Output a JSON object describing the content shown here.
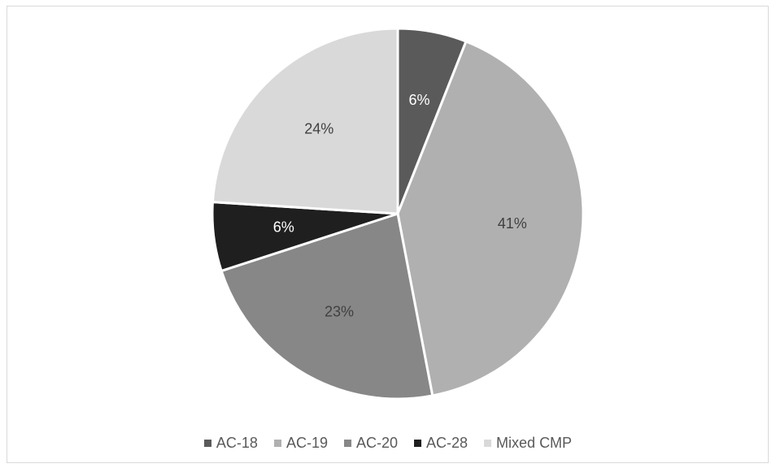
{
  "chart_data": {
    "type": "pie",
    "title": "",
    "legend_position": "bottom",
    "slices": [
      {
        "name": "AC-18",
        "value": 6,
        "label": "6%",
        "color": "#5a5a5a",
        "label_color": "#ffffff"
      },
      {
        "name": "AC-19",
        "value": 41,
        "label": "41%",
        "color": "#b0b0b0",
        "label_color": "#404040"
      },
      {
        "name": "AC-20",
        "value": 23,
        "label": "23%",
        "color": "#878787",
        "label_color": "#404040"
      },
      {
        "name": "AC-28",
        "value": 6,
        "label": "6%",
        "color": "#1f1f1f",
        "label_color": "#ffffff"
      },
      {
        "name": "Mixed CMP",
        "value": 24,
        "label": "24%",
        "color": "#d9d9d9",
        "label_color": "#404040"
      }
    ]
  }
}
